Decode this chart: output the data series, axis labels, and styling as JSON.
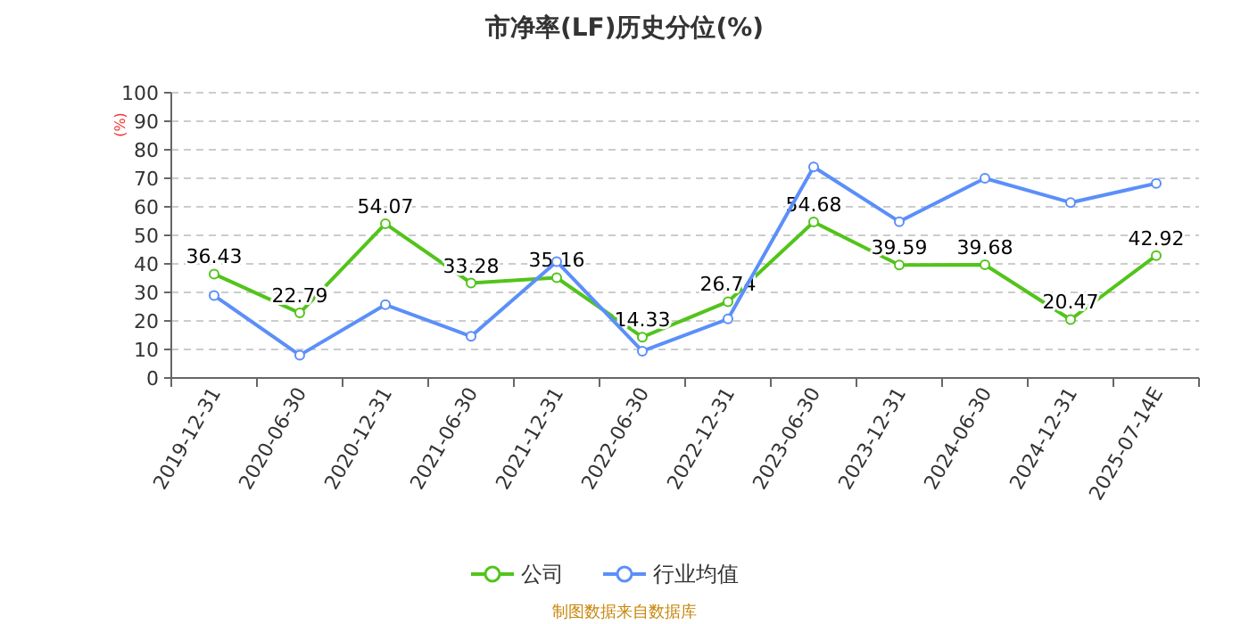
{
  "chart_data": {
    "type": "line",
    "title": "市净率(LF)历史分位(%)",
    "ylabel": "(%)",
    "categories": [
      "2019-12-31",
      "2020-06-30",
      "2020-12-31",
      "2021-06-30",
      "2021-12-31",
      "2022-06-30",
      "2022-12-31",
      "2023-06-30",
      "2023-12-31",
      "2024-06-30",
      "2024-12-31",
      "2025-07-14E"
    ],
    "series": [
      {
        "name": "公司",
        "color": "#52c41a",
        "values": [
          36.43,
          22.79,
          54.07,
          33.28,
          35.16,
          14.33,
          26.74,
          54.68,
          39.59,
          39.68,
          20.47,
          42.92
        ],
        "value_labels": [
          "36.43",
          "22.79",
          "54.07",
          "33.28",
          "35.16",
          "14.33",
          "26.74",
          "54.68",
          "39.59",
          "39.68",
          "20.47",
          "42.92"
        ]
      },
      {
        "name": "行业均值",
        "color": "#5b8ff9",
        "values": [
          28.9,
          8,
          25.7,
          14.6,
          40.8,
          9.4,
          20.7,
          74,
          54.8,
          70,
          61.5,
          68.2
        ]
      }
    ],
    "ylim": [
      0,
      100
    ],
    "yticks": [
      0,
      10,
      20,
      30,
      40,
      50,
      60,
      70,
      80,
      90,
      100
    ],
    "grid": "y",
    "legend": "bottom",
    "marker": "circle",
    "annotations": [
      "制图数据来自数据库"
    ]
  }
}
